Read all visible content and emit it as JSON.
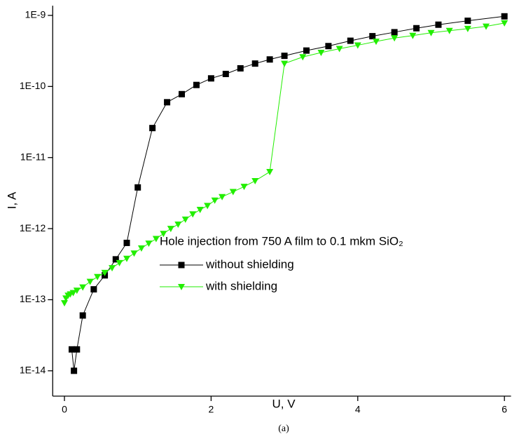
{
  "chart_data": {
    "type": "line",
    "xlabel": "U, V",
    "ylabel": "I, A",
    "caption": "(a)",
    "legend_title": "Hole injection from 750 A film to 0.1 mkm SiO₂",
    "log_y": true,
    "xlim": [
      -0.16,
      6.09
    ],
    "ylim": [
      4.4e-15,
      1.37e-09
    ],
    "xticks": [
      0,
      2,
      4,
      6
    ],
    "yticks": [
      {
        "value": 1e-09,
        "label": "1E-9"
      },
      {
        "value": 1e-10,
        "label": "1E-10"
      },
      {
        "value": 1e-11,
        "label": "1E-11"
      },
      {
        "value": 1e-12,
        "label": "1E-12"
      },
      {
        "value": 1e-13,
        "label": "1E-13"
      },
      {
        "value": 1e-14,
        "label": "1E-14"
      }
    ],
    "series": [
      {
        "name": "without shielding",
        "color": "#000000",
        "marker": "square",
        "x": [
          0.1,
          0.13,
          0.17,
          0.25,
          0.4,
          0.55,
          0.7,
          0.85,
          1.0,
          1.2,
          1.4,
          1.6,
          1.8,
          2.0,
          2.2,
          2.4,
          2.6,
          2.8,
          3.0,
          3.3,
          3.6,
          3.9,
          4.2,
          4.5,
          4.8,
          5.1,
          5.5,
          6.0
        ],
        "values": [
          2e-14,
          1e-14,
          2e-14,
          6e-14,
          1.4e-13,
          2.2e-13,
          3.7e-13,
          6.3e-13,
          3.8e-12,
          2.6e-11,
          6e-11,
          7.8e-11,
          1.05e-10,
          1.3e-10,
          1.5e-10,
          1.8e-10,
          2.1e-10,
          2.4e-10,
          2.7e-10,
          3.2e-10,
          3.7e-10,
          4.4e-10,
          5.1e-10,
          5.8e-10,
          6.6e-10,
          7.4e-10,
          8.4e-10,
          9.7e-10
        ]
      },
      {
        "name": "with shielding",
        "color": "#22ee00",
        "marker": "triangle-down",
        "x": [
          0,
          0.02,
          0.05,
          0.08,
          0.12,
          0.17,
          0.25,
          0.35,
          0.45,
          0.55,
          0.65,
          0.75,
          0.85,
          0.95,
          1.05,
          1.15,
          1.25,
          1.35,
          1.45,
          1.55,
          1.65,
          1.75,
          1.85,
          1.95,
          2.05,
          2.15,
          2.3,
          2.45,
          2.6,
          2.8,
          3.0,
          3.25,
          3.5,
          3.75,
          4.0,
          4.25,
          4.5,
          4.75,
          5.0,
          5.25,
          5.5,
          5.75,
          6.0
        ],
        "values": [
          9e-14,
          1.05e-13,
          1.15e-13,
          1.2e-13,
          1.25e-13,
          1.35e-13,
          1.5e-13,
          1.8e-13,
          2.1e-13,
          2.4e-13,
          2.8e-13,
          3.3e-13,
          3.8e-13,
          4.5e-13,
          5.3e-13,
          6.2e-13,
          7.2e-13,
          8.5e-13,
          1e-12,
          1.15e-12,
          1.35e-12,
          1.6e-12,
          1.85e-12,
          2.1e-12,
          2.5e-12,
          2.8e-12,
          3.3e-12,
          3.9e-12,
          4.7e-12,
          6.3e-12,
          2.1e-10,
          2.6e-10,
          3e-10,
          3.4e-10,
          3.8e-10,
          4.3e-10,
          4.8e-10,
          5.2e-10,
          5.7e-10,
          6.1e-10,
          6.5e-10,
          7e-10,
          7.8e-10
        ]
      }
    ]
  }
}
